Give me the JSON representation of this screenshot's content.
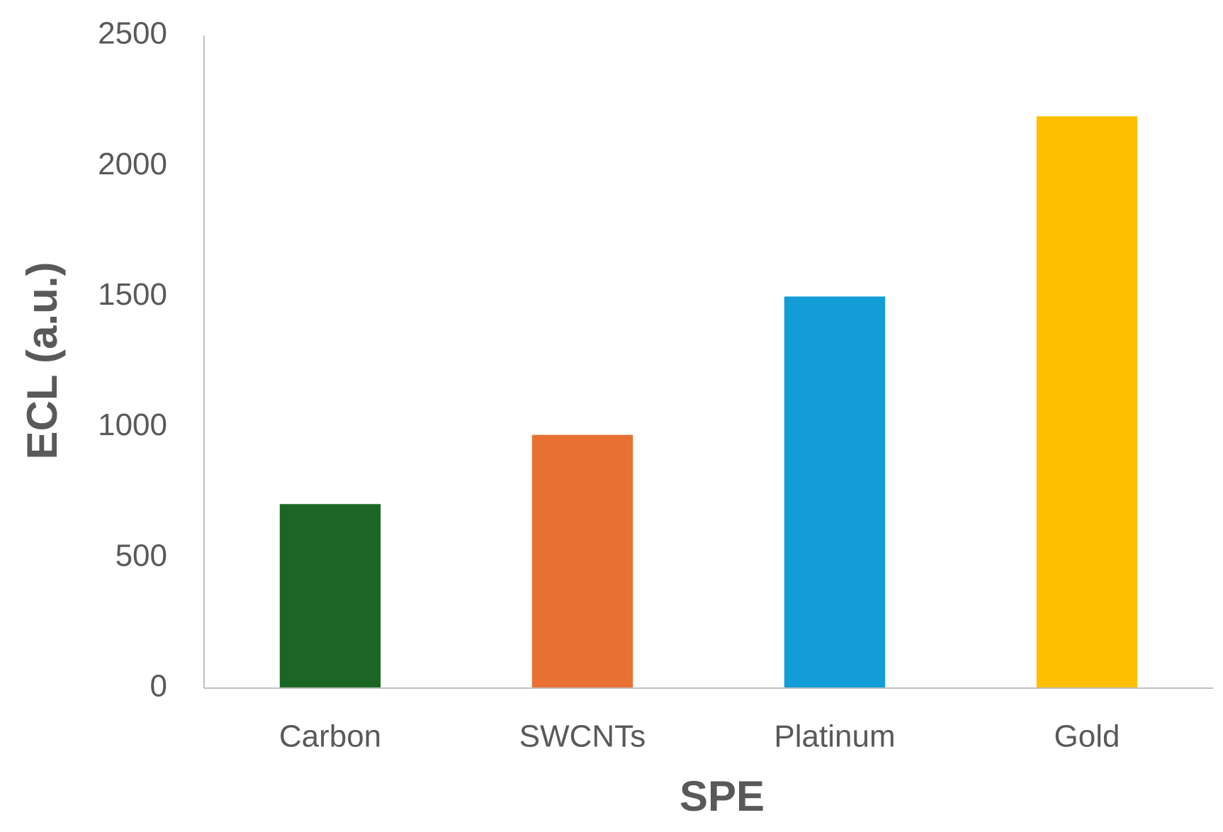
{
  "chart_data": {
    "type": "bar",
    "x_label": "SPE",
    "y_label": "ECL (a.u.)",
    "categories": [
      "Carbon",
      "SWCNTs",
      "Platinum",
      "Gold"
    ],
    "values": [
      705,
      970,
      1500,
      2190
    ],
    "colors": [
      "#1b6625",
      "#e87033",
      "#129dd6",
      "#fdbf00"
    ],
    "ylim": [
      0,
      2500
    ],
    "yticks": [
      0,
      500,
      1000,
      1500,
      2000,
      2500
    ],
    "grid": false
  }
}
